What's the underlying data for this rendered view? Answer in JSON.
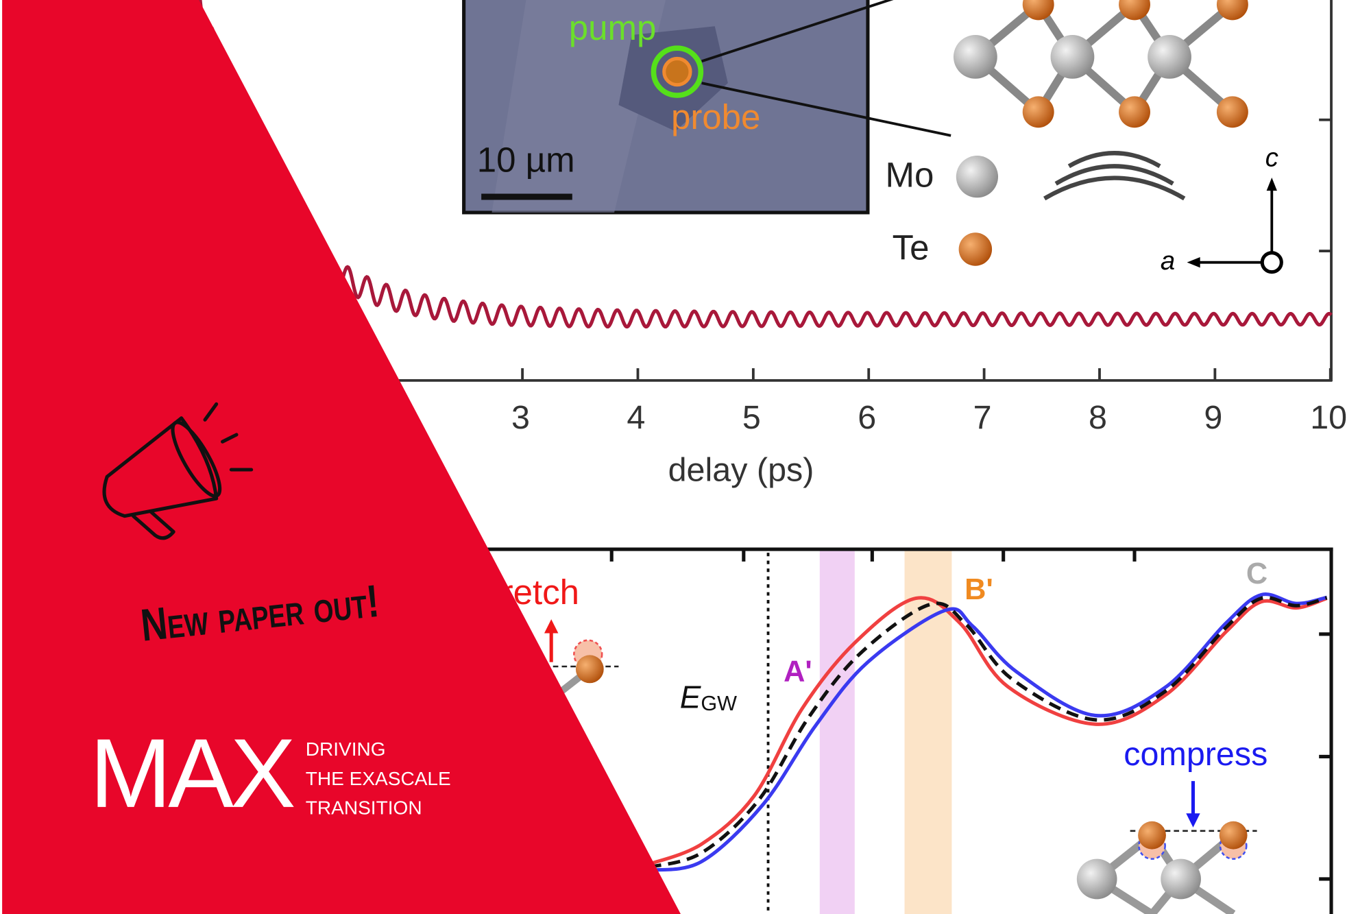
{
  "inset": {
    "pump": "pump",
    "probe": "probe",
    "scale_bar": "10 µm"
  },
  "legend": {
    "mo": "Mo",
    "te": "Te"
  },
  "axes_glyphs": {
    "c": "c",
    "a": "a"
  },
  "top_plot": {
    "x_ticks": [
      "3",
      "4",
      "5",
      "6",
      "7",
      "8",
      "9",
      "10"
    ],
    "x_label": "delay (ps)"
  },
  "bottom_plot": {
    "stretch": "tretch",
    "compress": "compress",
    "peaks": [
      "A'",
      "B'",
      "C"
    ],
    "e_gw": {
      "symbol": "E",
      "subscript": "GW"
    }
  },
  "banner": {
    "headline": "New paper out!",
    "logo": "MAX",
    "tagline": [
      "DRIVING",
      "THE EXASCALE",
      "TRANSITION"
    ]
  }
}
